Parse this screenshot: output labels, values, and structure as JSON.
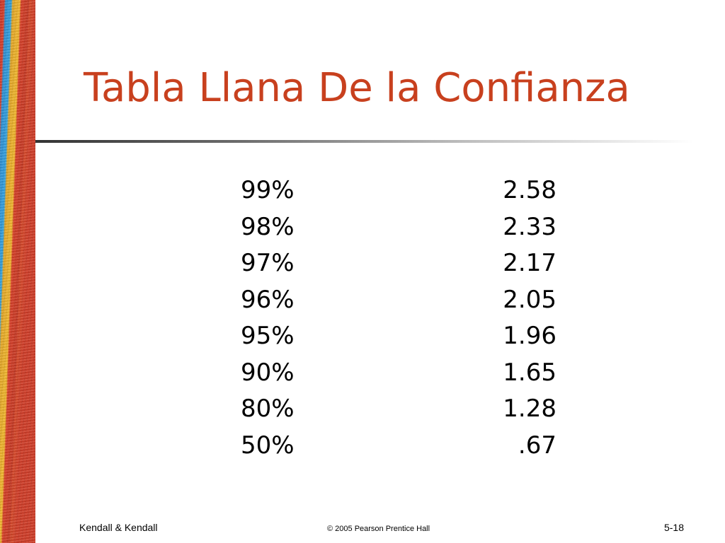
{
  "slide": {
    "title": "Tabla Llana De la Confianza"
  },
  "table": {
    "rows": [
      {
        "level": "99%",
        "z": "2.58"
      },
      {
        "level": "98%",
        "z": "2.33"
      },
      {
        "level": "97%",
        "z": "2.17"
      },
      {
        "level": "96%",
        "z": "2.05"
      },
      {
        "level": "95%",
        "z": "1.96"
      },
      {
        "level": "90%",
        "z": "1.65"
      },
      {
        "level": "80%",
        "z": "1.28"
      },
      {
        "level": "50%",
        "z": ".67"
      }
    ]
  },
  "footer": {
    "left": "Kendall & Kendall",
    "center": "© 2005 Pearson Prentice Hall",
    "right": "5-18"
  },
  "colors": {
    "title": "#c8401e"
  }
}
